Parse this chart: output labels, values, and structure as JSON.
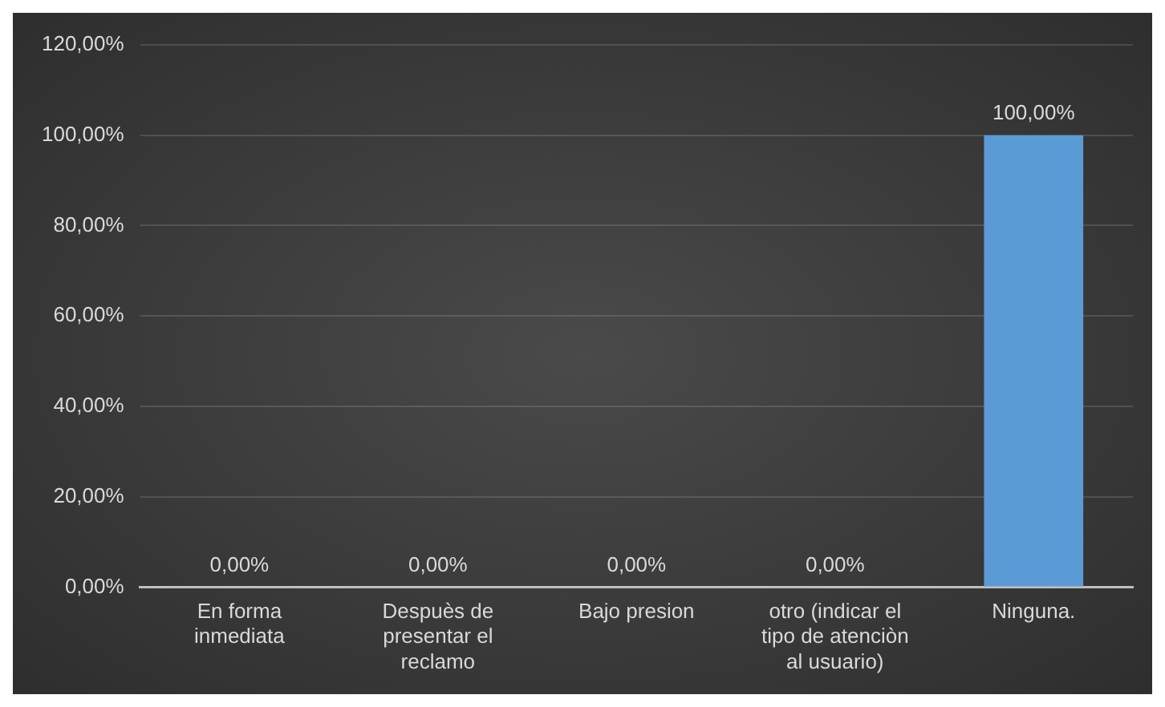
{
  "chart_data": {
    "type": "bar",
    "categories": [
      "En forma inmediata",
      "Despuès de presentar el reclamo",
      "Bajo presion",
      "otro (indicar el tipo de atenciòn al usuario)",
      "Ninguna."
    ],
    "values": [
      0,
      0,
      0,
      0,
      100
    ],
    "value_labels": [
      "0,00%",
      "0,00%",
      "0,00%",
      "0,00%",
      "100,00%"
    ],
    "color": "#5b9bd5",
    "ylim": [
      0,
      120
    ],
    "yticks": [
      {
        "value": 0,
        "label": "0,00%"
      },
      {
        "value": 20,
        "label": "20,00%"
      },
      {
        "value": 40,
        "label": "40,00%"
      },
      {
        "value": 60,
        "label": "60,00%"
      },
      {
        "value": 80,
        "label": "80,00%"
      },
      {
        "value": 100,
        "label": "100,00%"
      },
      {
        "value": 120,
        "label": "120,00%"
      }
    ],
    "grid": "y",
    "legend": false
  }
}
